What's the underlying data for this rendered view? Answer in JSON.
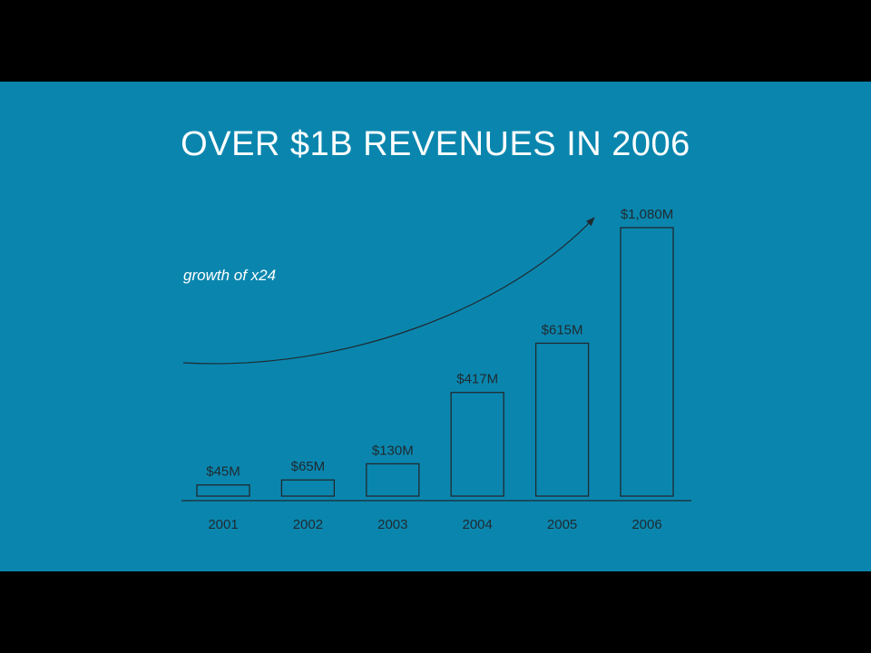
{
  "slide": {
    "title": "OVER $1B REVENUES IN 2006",
    "background_color": "#0A86AE",
    "letterbox_color": "#000000"
  },
  "chart_data": {
    "type": "bar",
    "categories": [
      "2001",
      "2002",
      "2003",
      "2004",
      "2005",
      "2006"
    ],
    "values": [
      45,
      65,
      130,
      417,
      615,
      1080
    ],
    "value_labels": [
      "$45M",
      "$65M",
      "$130M",
      "$417M",
      "$615M",
      "$1,080M"
    ],
    "ylim": [
      0,
      1080
    ],
    "annotations": [
      {
        "text": "growth of x24",
        "type": "curved-arrow"
      }
    ],
    "grid": false,
    "bar_style": "outline",
    "line_color": "#1F2A30"
  }
}
